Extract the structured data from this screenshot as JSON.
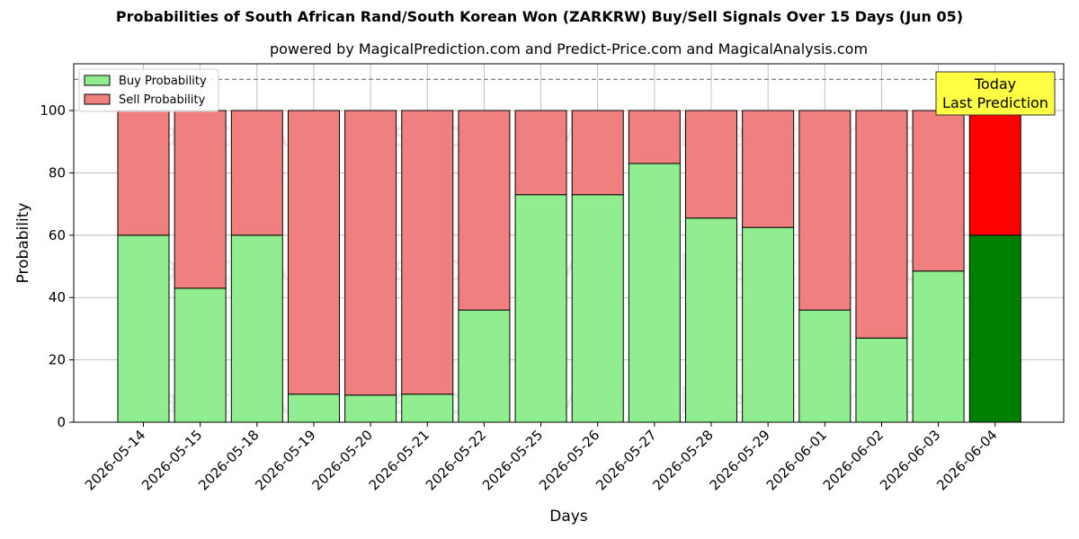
{
  "chart_data": {
    "type": "bar",
    "title": "Probabilities of South African Rand/South Korean Won (ZARKRW) Buy/Sell Signals Over 15 Days (Jun 05)",
    "subtitle": "powered by MagicalPrediction.com and Predict-Price.com and MagicalAnalysis.com",
    "xlabel": "Days",
    "ylabel": "Probability",
    "ylim": [
      0,
      115
    ],
    "yticks": [
      0,
      20,
      40,
      60,
      80,
      100
    ],
    "stacked": true,
    "categories": [
      "2026-05-14",
      "2026-05-15",
      "2026-05-18",
      "2026-05-19",
      "2026-05-20",
      "2026-05-21",
      "2026-05-22",
      "2026-05-25",
      "2026-05-26",
      "2026-05-27",
      "2026-05-28",
      "2026-05-29",
      "2026-06-01",
      "2026-06-02",
      "2026-06-03",
      "2026-06-04"
    ],
    "series": [
      {
        "name": "Buy Probability",
        "color": "#90ee90",
        "values": [
          60,
          43,
          60,
          9,
          8.7,
          9,
          36,
          73,
          73,
          83,
          65.5,
          62.5,
          36,
          27,
          48.5,
          60
        ]
      },
      {
        "name": "Sell Probability",
        "color": "#f08080",
        "values": [
          40,
          57,
          40,
          91,
          91.3,
          91,
          64,
          27,
          27,
          17,
          34.5,
          37.5,
          64,
          73,
          51.5,
          40
        ]
      }
    ],
    "highlight": {
      "index": 15,
      "buy_color": "#008000",
      "sell_color": "#ff0000"
    },
    "reference_line": {
      "y": 110,
      "style": "dashed",
      "color": "#808080"
    },
    "annotation": {
      "lines": [
        "Today",
        "Last Prediction"
      ],
      "background": "#ffff44"
    },
    "legend": {
      "position": "top-left",
      "entries": [
        "Buy Probability",
        "Sell Probability"
      ]
    },
    "grid": true,
    "watermarks": [
      "MagicalAnalysis.com",
      "MagicalPrediction.com"
    ]
  }
}
